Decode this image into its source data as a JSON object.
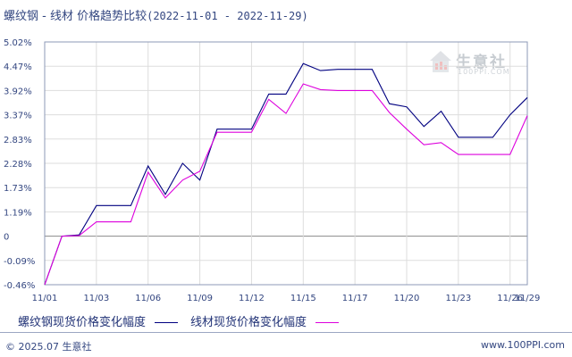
{
  "header": {
    "title": "螺纹钢 - 线材 价格趋势比较",
    "date_range": "(2022-11-01 - 2022-11-29)"
  },
  "watermark": {
    "name": "生意社",
    "url": "100PPI.COM",
    "icon": "house-logo-icon"
  },
  "footer": {
    "copyright": "© 2025.07 生意社",
    "site": "www.100PPI.com"
  },
  "colors": {
    "series1": "#000080",
    "series2": "#dd00dd",
    "grid": "#dddddd",
    "axis": "#8c99b7"
  },
  "chart_data": {
    "type": "line",
    "title": "螺纹钢 - 线材 价格趋势比较(2022-11-01 - 2022-11-29)",
    "x_ticks": [
      "11/01",
      "11/03",
      "11/06",
      "11/09",
      "11/12",
      "11/15",
      "11/17",
      "11/20",
      "11/23",
      "11/26",
      "11/29"
    ],
    "y_ticks": [
      "5.02%",
      "4.47%",
      "3.92%",
      "3.37%",
      "2.83%",
      "2.28%",
      "1.73%",
      "1.19%",
      "0",
      "-0.09%",
      "-0.46%"
    ],
    "y_tick_values": [
      5.02,
      4.47,
      3.92,
      3.37,
      2.83,
      2.28,
      1.73,
      1.19,
      0,
      -0.09,
      -0.46
    ],
    "ylim": [
      -0.46,
      5.02
    ],
    "grid": true,
    "legend_position": "bottom",
    "x": [
      0,
      1,
      2,
      3,
      4,
      5,
      6,
      7,
      8,
      9,
      10,
      11,
      12,
      13,
      14,
      15,
      16,
      17,
      18,
      19,
      20,
      21,
      22,
      23,
      24,
      25,
      26,
      27,
      28
    ],
    "series": [
      {
        "name": "螺纹钢现货价格变化幅度",
        "values": [
          -0.46,
          0.0,
          0.06,
          1.33,
          1.33,
          1.33,
          2.22,
          1.58,
          2.28,
          1.9,
          3.05,
          3.05,
          3.05,
          3.84,
          3.84,
          4.53,
          4.37,
          4.4,
          4.4,
          4.4,
          3.62,
          3.55,
          3.11,
          3.45,
          2.87,
          2.87,
          2.87,
          3.37,
          3.76
        ]
      },
      {
        "name": "线材现货价格变化幅度",
        "values": [
          -0.46,
          0.0,
          0.03,
          0.7,
          0.7,
          0.7,
          2.08,
          1.5,
          1.9,
          2.1,
          2.98,
          2.98,
          2.98,
          3.72,
          3.4,
          4.07,
          3.94,
          3.92,
          3.92,
          3.92,
          3.42,
          3.05,
          2.7,
          2.75,
          2.48,
          2.48,
          2.48,
          2.48,
          3.35
        ]
      }
    ]
  }
}
